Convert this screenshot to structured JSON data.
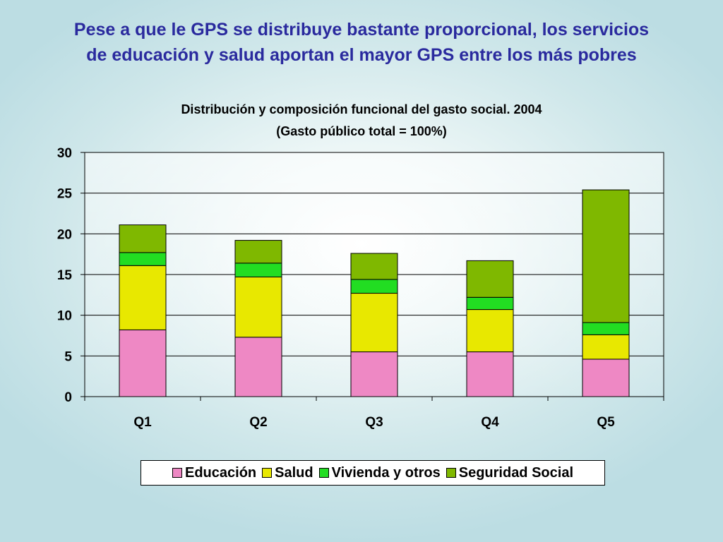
{
  "slide": {
    "title_line1": "Pese a que le GPS se distribuye bastante proporcional, los servicios",
    "title_line2": "de educación y salud aportan el mayor GPS entre los más pobres"
  },
  "chart_data": {
    "type": "bar",
    "stacked": true,
    "title": "Distribución y composición funcional del gasto social. 2004",
    "subtitle": "(Gasto público total = 100%)",
    "xlabel": "",
    "ylabel": "",
    "categories": [
      "Q1",
      "Q2",
      "Q3",
      "Q4",
      "Q5"
    ],
    "ylim": [
      0,
      30
    ],
    "yticks": [
      0,
      5,
      10,
      15,
      20,
      25,
      30
    ],
    "grid": true,
    "legend_position": "bottom",
    "series": [
      {
        "name": "Educación",
        "color": "#ee88c4",
        "values": [
          8.2,
          7.3,
          5.5,
          5.5,
          4.6
        ]
      },
      {
        "name": "Salud",
        "color": "#e8e800",
        "values": [
          7.9,
          7.4,
          7.2,
          5.2,
          3.0
        ]
      },
      {
        "name": "Vivienda y otros",
        "color": "#22dd22",
        "values": [
          1.6,
          1.7,
          1.7,
          1.5,
          1.5
        ]
      },
      {
        "name": "Seguridad Social",
        "color": "#7fb800",
        "values": [
          3.4,
          2.8,
          3.2,
          4.5,
          16.3
        ]
      }
    ]
  }
}
